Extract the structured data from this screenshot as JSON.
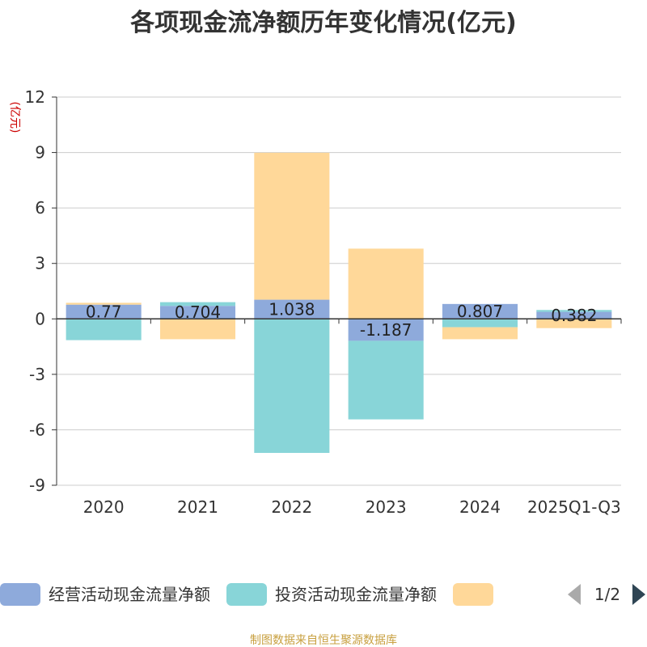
{
  "chart_data": {
    "type": "bar",
    "stacked": true,
    "title": "各项现金流净额历年变化情况(亿元)",
    "ylabel": "(亿元)",
    "xlabel": "",
    "ylim": [
      -9,
      12
    ],
    "yticks": [
      12,
      9,
      6,
      3,
      0,
      -3,
      -6,
      -9
    ],
    "grid": true,
    "categories": [
      "2020",
      "2021",
      "2022",
      "2023",
      "2024",
      "2025Q1-Q3"
    ],
    "series": [
      {
        "name": "经营活动现金流量净额",
        "color": "#8eaadb",
        "values": [
          0.77,
          0.704,
          1.038,
          -1.187,
          0.807,
          0.382
        ],
        "show_labels": true
      },
      {
        "name": "投资活动现金流量净额",
        "color": "#88d5d8",
        "values": [
          -1.15,
          0.2,
          -7.25,
          -4.25,
          -0.45,
          0.1
        ],
        "show_labels": false
      },
      {
        "name": "",
        "color": "#ffd899",
        "values": [
          0.1,
          -1.1,
          7.95,
          3.8,
          -0.65,
          -0.5
        ],
        "show_labels": false
      }
    ],
    "legend": {
      "position": "bottom",
      "page": "1/2"
    }
  },
  "source": "制图数据来自恒生聚源数据库"
}
